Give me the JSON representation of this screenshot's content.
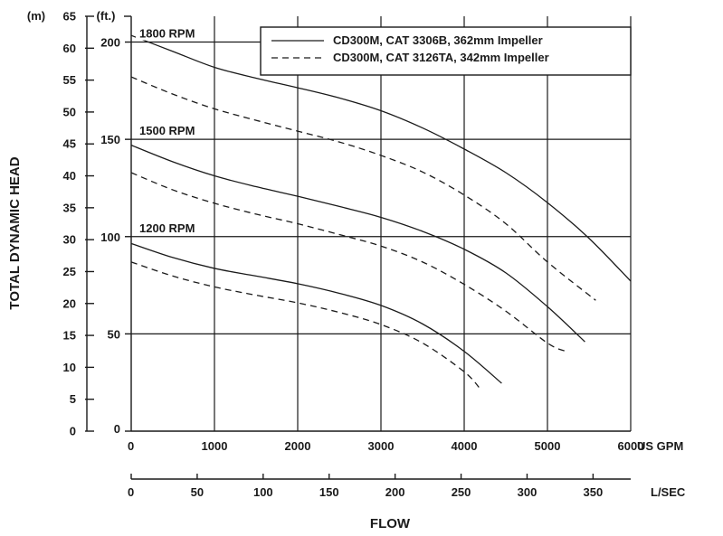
{
  "chart_data": {
    "type": "line",
    "title": "",
    "xlabel": "FLOW",
    "ylabel": "TOTAL DYNAMIC HEAD",
    "x_unit_primary": "US GPM",
    "x_unit_secondary": "L/SEC",
    "y_unit_left": "(m)",
    "y_unit_right": "(ft.)",
    "xlim": [
      0,
      6000
    ],
    "ylim_m": [
      0,
      65
    ],
    "x_ticks": [
      0,
      1000,
      2000,
      3000,
      4000,
      5000,
      6000
    ],
    "x_ticks_lsec": [
      0,
      50,
      100,
      150,
      200,
      250,
      300,
      350
    ],
    "y_ticks_m": [
      0,
      5,
      10,
      15,
      20,
      25,
      30,
      35,
      40,
      45,
      50,
      55,
      60,
      65
    ],
    "y_ticks_ft": [
      0,
      50,
      100,
      150,
      200
    ],
    "grid": true,
    "legend_position": "top-right",
    "speed_labels": [
      {
        "label": "1800 RPM",
        "ft": 200
      },
      {
        "label": "1500 RPM",
        "ft": 150
      },
      {
        "label": "1200 RPM",
        "ft": 100
      }
    ],
    "series": [
      {
        "name": "CD300M, CAT 3306B, 362mm Impeller",
        "style": "solid",
        "curves": [
          {
            "rpm": "1800 RPM",
            "x": [
              0,
              500,
              1000,
              1500,
              2000,
              2500,
              3000,
              3500,
              4000,
              4500,
              5000,
              5500,
              6000
            ],
            "y": [
              62,
              59.5,
              57,
              55.3,
              53.8,
              52.2,
              50.2,
              47.5,
              44.2,
              40.5,
              35.8,
              30.2,
              23.5
            ]
          },
          {
            "rpm": "1500 RPM",
            "x": [
              0,
              500,
              1000,
              1500,
              2000,
              2500,
              3000,
              3500,
              4000,
              4500,
              5000,
              5450
            ],
            "y": [
              44.8,
              42.2,
              40,
              38.3,
              36.8,
              35.2,
              33.5,
              31.3,
              28.5,
              24.8,
              19.5,
              14
            ]
          },
          {
            "rpm": "1200 RPM",
            "x": [
              0,
              500,
              1000,
              1500,
              2000,
              2500,
              3000,
              3500,
              4000,
              4450
            ],
            "y": [
              29.4,
              27.2,
              25.5,
              24.3,
              23.1,
              21.6,
              19.7,
              16.8,
              12.5,
              7.5
            ]
          }
        ]
      },
      {
        "name": "CD300M, CAT 3126TA, 342mm Impeller",
        "style": "dashed",
        "curves": [
          {
            "rpm": "1800 RPM",
            "x": [
              0,
              500,
              1000,
              1500,
              2000,
              2500,
              3000,
              3500,
              4000,
              4500,
              5000,
              5580
            ],
            "y": [
              55.5,
              52.8,
              50.5,
              48.7,
              47,
              45.3,
              43.2,
              40.6,
              37,
              32.5,
              26.5,
              20.5
            ]
          },
          {
            "rpm": "1500 RPM",
            "x": [
              0,
              500,
              1000,
              1500,
              2000,
              2500,
              3000,
              3500,
              4000,
              4500,
              5000,
              5220
            ],
            "y": [
              40.5,
              37.8,
              35.7,
              34,
              32.5,
              30.8,
              29,
              26.5,
              23,
              18.8,
              13.8,
              12.5
            ]
          },
          {
            "rpm": "1200 RPM",
            "x": [
              0,
              500,
              1000,
              1500,
              2000,
              2500,
              3000,
              3500,
              4000,
              4200
            ],
            "y": [
              26.5,
              24.3,
              22.6,
              21.3,
              20.1,
              18.6,
              16.7,
              13.8,
              9.3,
              6.5
            ]
          }
        ]
      }
    ]
  }
}
